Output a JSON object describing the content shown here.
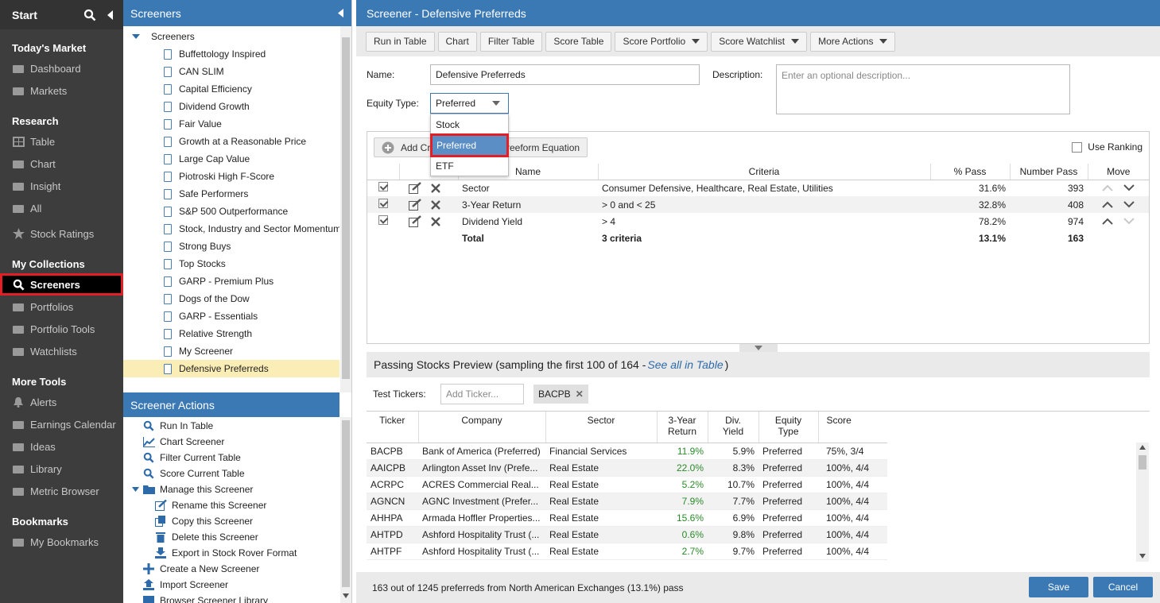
{
  "nav": {
    "start_label": "Start",
    "sections": [
      {
        "title": "Today's Market",
        "items": [
          {
            "label": "Dashboard",
            "icon": "dashboard-icon"
          },
          {
            "label": "Markets",
            "icon": "chart-area-icon"
          }
        ]
      },
      {
        "title": "Research",
        "items": [
          {
            "label": "Table",
            "icon": "table-icon"
          },
          {
            "label": "Chart",
            "icon": "line-chart-icon"
          },
          {
            "label": "Insight",
            "icon": "insight-icon"
          },
          {
            "label": "All",
            "icon": "list-icon"
          },
          {
            "label": "Stock Ratings",
            "icon": "star-icon"
          }
        ]
      },
      {
        "title": "My Collections",
        "items": [
          {
            "label": "Screeners",
            "icon": "search-icon"
          },
          {
            "label": "Portfolios",
            "icon": "briefcase-icon"
          },
          {
            "label": "Portfolio Tools",
            "icon": "bar-chart-icon"
          },
          {
            "label": "Watchlists",
            "icon": "binoculars-icon"
          }
        ]
      },
      {
        "title": "More Tools",
        "items": [
          {
            "label": "Alerts",
            "icon": "bell-icon"
          },
          {
            "label": "Earnings Calendar",
            "icon": "calendar-icon"
          },
          {
            "label": "Ideas",
            "icon": "lightbulb-icon"
          },
          {
            "label": "Library",
            "icon": "library-icon"
          },
          {
            "label": "Metric Browser",
            "icon": "metric-icon"
          }
        ]
      },
      {
        "title": "Bookmarks",
        "items": [
          {
            "label": "My Bookmarks",
            "icon": "bookmark-icon"
          }
        ]
      }
    ]
  },
  "tree": {
    "header": "Screeners",
    "root_label": "Screeners",
    "items": [
      "Buffettology Inspired",
      "CAN SLIM",
      "Capital Efficiency",
      "Dividend Growth",
      "Fair Value",
      "Growth at a Reasonable Price",
      "Large Cap Value",
      "Piotroski High F-Score",
      "Safe Performers",
      "S&P 500 Outperformance",
      "Stock, Industry and Sector Momentum",
      "Strong Buys",
      "Top Stocks",
      "GARP - Premium Plus",
      "Dogs of the Dow",
      "GARP - Essentials",
      "Relative Strength",
      "My Screener",
      "Defensive Preferreds"
    ],
    "selected": "Defensive Preferreds"
  },
  "actions": {
    "header": "Screener Actions",
    "items": [
      {
        "label": "Run In Table",
        "icon": "search-icon"
      },
      {
        "label": "Chart Screener",
        "icon": "line-chart-icon"
      },
      {
        "label": "Filter Current Table",
        "icon": "search-icon"
      },
      {
        "label": "Score Current Table",
        "icon": "search-icon"
      },
      {
        "label": "Manage this Screener",
        "icon": "folder-icon"
      },
      {
        "label": "Rename this Screener",
        "icon": "edit-icon"
      },
      {
        "label": "Copy this Screener",
        "icon": "copy-icon"
      },
      {
        "label": "Delete this Screener",
        "icon": "trash-icon"
      },
      {
        "label": "Export in Stock Rover Format",
        "icon": "download-icon"
      },
      {
        "label": "Create a New Screener",
        "icon": "plus-icon"
      },
      {
        "label": "Import Screener",
        "icon": "upload-icon"
      },
      {
        "label": "Browser Screener Library",
        "icon": "library-icon"
      }
    ]
  },
  "main": {
    "title": "Screener - Defensive Preferreds",
    "toolbar": {
      "run": "Run in Table",
      "chart": "Chart",
      "filter": "Filter Table",
      "score": "Score Table",
      "score_portfolio": "Score Portfolio",
      "score_watchlist": "Score Watchlist",
      "more": "More Actions"
    },
    "name_label": "Name:",
    "name_value": "Defensive Preferreds",
    "desc_label": "Description:",
    "desc_placeholder": "Enter an optional description...",
    "equity_label": "Equity Type:",
    "equity_value": "Preferred",
    "equity_options": [
      "Stock",
      "Preferred",
      "ETF"
    ],
    "add_criteria": "Add Cr",
    "freeform": "reeform Equation",
    "use_ranking": "Use Ranking",
    "crit_headers": {
      "name": "Name",
      "criteria": "Criteria",
      "pass": "% Pass",
      "number": "Number Pass",
      "move": "Move"
    },
    "criteria": [
      {
        "name": "Sector",
        "criteria": "Consumer Defensive, Healthcare, Real Estate, Utilities",
        "pass": "31.6%",
        "number": "393"
      },
      {
        "name": "3-Year Return",
        "criteria": "> 0 and < 25",
        "pass": "32.8%",
        "number": "408"
      },
      {
        "name": "Dividend Yield",
        "criteria": "> 4",
        "pass": "78.2%",
        "number": "974"
      }
    ],
    "total": {
      "name": "Total",
      "criteria": "3 criteria",
      "pass": "13.1%",
      "number": "163"
    },
    "preview_title": "Passing Stocks Preview (sampling the first 100 of 164 - ",
    "preview_link": "See all in Table",
    "preview_close": ")",
    "test_tickers_label": "Test Tickers:",
    "add_ticker_placeholder": "Add Ticker...",
    "ticker_tag": "BACPB",
    "prev_headers": {
      "ticker": "Ticker",
      "company": "Company",
      "sector": "Sector",
      "ret1": "3-Year",
      "ret2": "Return",
      "div1": "Div.",
      "div2": "Yield",
      "eq1": "Equity",
      "eq2": "Type",
      "score": "Score"
    },
    "rows": [
      {
        "ticker": "BACPB",
        "company": "Bank of America (Preferred)",
        "sector": "Financial Services",
        "ret": "11.9%",
        "yield": "5.9%",
        "type": "Preferred",
        "score": "75%, 3/4"
      },
      {
        "ticker": "AAICPB",
        "company": "Arlington Asset Inv (Prefe...",
        "sector": "Real Estate",
        "ret": "22.0%",
        "yield": "8.3%",
        "type": "Preferred",
        "score": "100%, 4/4"
      },
      {
        "ticker": "ACRPC",
        "company": "ACRES Commercial Real...",
        "sector": "Real Estate",
        "ret": "5.2%",
        "yield": "10.7%",
        "type": "Preferred",
        "score": "100%, 4/4"
      },
      {
        "ticker": "AGNCN",
        "company": "AGNC Investment (Prefer...",
        "sector": "Real Estate",
        "ret": "7.9%",
        "yield": "7.7%",
        "type": "Preferred",
        "score": "100%, 4/4"
      },
      {
        "ticker": "AHHPA",
        "company": "Armada Hoffler Properties...",
        "sector": "Real Estate",
        "ret": "15.6%",
        "yield": "6.9%",
        "type": "Preferred",
        "score": "100%, 4/4"
      },
      {
        "ticker": "AHTPD",
        "company": "Ashford Hospitality Trust (...",
        "sector": "Real Estate",
        "ret": "0.6%",
        "yield": "9.8%",
        "type": "Preferred",
        "score": "100%, 4/4"
      },
      {
        "ticker": "AHTPF",
        "company": "Ashford Hospitality Trust (...",
        "sector": "Real Estate",
        "ret": "2.7%",
        "yield": "9.7%",
        "type": "Preferred",
        "score": "100%, 4/4"
      }
    ],
    "status": "163 out of 1245 preferreds from North American Exchanges (13.1%) pass",
    "save": "Save",
    "cancel": "Cancel"
  },
  "colors": {
    "accent": "#3b79b5",
    "highlight": "#e31e24",
    "selected_bg": "#fbedb6",
    "nav_bg": "#3d3d3d"
  }
}
